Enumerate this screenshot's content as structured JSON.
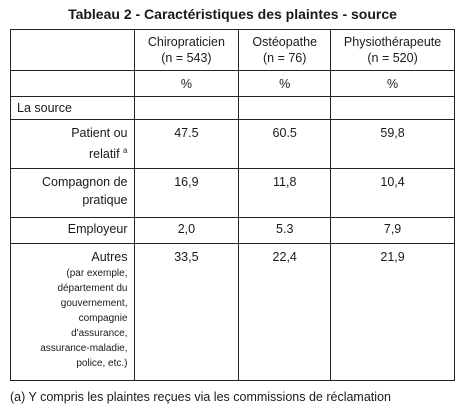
{
  "title": "Tableau 2 - Caractéristiques des plaintes - source",
  "columns": [
    {
      "name": "Chiropraticien",
      "n": "(n = 543)"
    },
    {
      "name": "Ostéopathe",
      "n": "(n = 76)"
    },
    {
      "name": "Physiothérapeute",
      "n": "(n = 520)"
    }
  ],
  "unit": "%",
  "section_label": "La source",
  "rows": [
    {
      "label_line1": "Patient ou",
      "label_line2": "relatif",
      "label_sup": "a",
      "values": [
        "47.5",
        "60.5",
        "59,8"
      ]
    },
    {
      "label_line1": "Compagnon de",
      "label_line2": "pratique",
      "values": [
        "16,9",
        "11,8",
        "10,4"
      ]
    },
    {
      "label_line1": "Employeur",
      "values": [
        "2,0",
        "5.3",
        "7,9"
      ]
    },
    {
      "label_line1": "Autres",
      "label_sub": [
        "(par exemple,",
        "département du",
        "gouvernement,",
        "compagnie",
        "d'assurance,",
        "assurance-maladie,",
        "police, etc.)"
      ],
      "values": [
        "33,5",
        "22,4",
        "21,9"
      ]
    }
  ],
  "footnote": "(a) Y compris les plaintes reçues via les commissions de réclamation"
}
